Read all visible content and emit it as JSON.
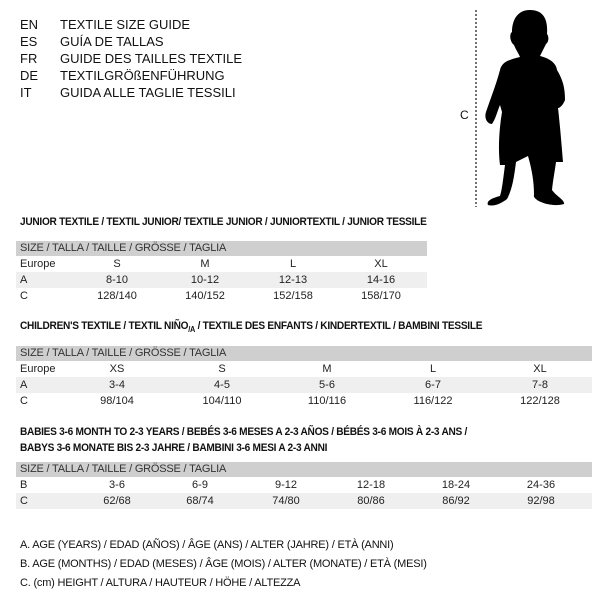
{
  "languages": [
    {
      "code": "EN",
      "title": "TEXTILE SIZE GUIDE"
    },
    {
      "code": "ES",
      "title": "GUÍA DE TALLAS"
    },
    {
      "code": "FR",
      "title": "GUIDE DES TAILLES TEXTILE"
    },
    {
      "code": "DE",
      "title": "TEXTILGRÖßENFÜHRUNG"
    },
    {
      "code": "IT",
      "title": "GUIDA ALLE TAGLIE TESSILI"
    }
  ],
  "figure": {
    "measure_label": "C"
  },
  "size_header": "SIZE / TALLA / TAILLE / GRÖSSE / TAGLIA",
  "junior": {
    "title": "JUNIOR TEXTILE / TEXTIL JUNIOR/ TEXTILE JUNIOR / JUNIORTEXTIL / JUNIOR TESSILE",
    "rows": [
      {
        "label": "Europe",
        "values": [
          "S",
          "M",
          "L",
          "XL"
        ]
      },
      {
        "label": "A",
        "values": [
          "8-10",
          "10-12",
          "12-13",
          "14-16"
        ]
      },
      {
        "label": "C",
        "values": [
          "128/140",
          "140/152",
          "152/158",
          "158/170"
        ]
      }
    ]
  },
  "children": {
    "title_a": "CHILDREN'S TEXTILE / TEXTIL NIÑO",
    "title_sub": "/A",
    "title_b": " / TEXTILE DES ENFANTS / KINDERTEXTIL / BAMBINI TESSILE",
    "rows": [
      {
        "label": "Europe",
        "values": [
          "XS",
          "S",
          "M",
          "L",
          "XL"
        ]
      },
      {
        "label": "A",
        "values": [
          "3-4",
          "4-5",
          "5-6",
          "6-7",
          "7-8"
        ]
      },
      {
        "label": "C",
        "values": [
          "98/104",
          "104/110",
          "110/116",
          "116/122",
          "122/128"
        ]
      }
    ]
  },
  "babies": {
    "title_line1": "BABIES 3-6 MONTH TO 2-3 YEARS / BEBÉS 3-6 MESES A 2-3 AÑOS / BÉBÉS 3-6 MOIS À 2-3 ANS /",
    "title_line2": "BABYS 3-6 MONATE BIS 2-3 JAHRE / BAMBINI 3-6 MESI A 2-3 ANNI",
    "rows": [
      {
        "label": "B",
        "values": [
          "3-6",
          "6-9",
          "9-12",
          "12-18",
          "18-24",
          "24-36"
        ]
      },
      {
        "label": "C",
        "values": [
          "62/68",
          "68/74",
          "74/80",
          "80/86",
          "86/92",
          "92/98"
        ]
      }
    ]
  },
  "legend": [
    "A. AGE (YEARS) / EDAD (AÑOS) / ÂGE (ANS) / ALTER (JAHRE) / ETÀ (ANNI)",
    "B. AGE (MONTHS) / EDAD (MESES) / ÂGE (MOIS) / ALTER (MONATE) / ETÀ (MESI)",
    "C. (cm) HEIGHT / ALTURA / HAUTEUR / HÖHE / ALTEZZA"
  ]
}
